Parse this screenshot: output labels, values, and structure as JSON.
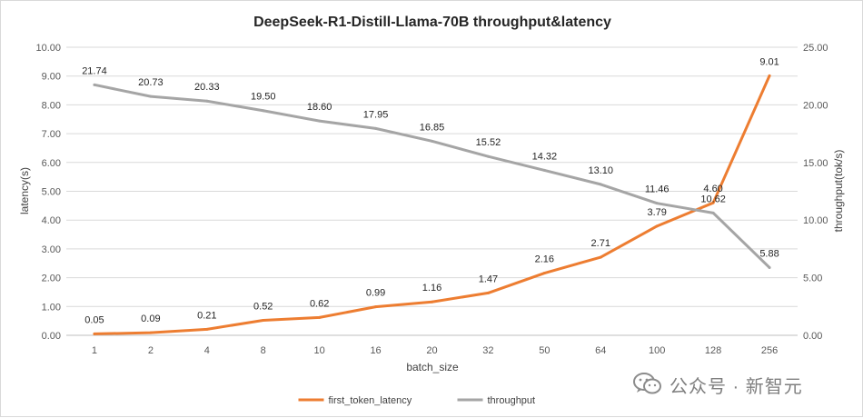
{
  "chart_data": {
    "type": "line",
    "title": "DeepSeek-R1-Distill-Llama-70B throughput&latency",
    "xlabel": "batch_size",
    "ylabel": "latency(s)",
    "y2label": "throughput(tok/s)",
    "categories": [
      "1",
      "2",
      "4",
      "8",
      "10",
      "16",
      "20",
      "32",
      "50",
      "64",
      "100",
      "128",
      "256"
    ],
    "ylim": [
      0,
      10
    ],
    "y2lim": [
      0,
      25
    ],
    "yticks": [
      "0.00",
      "1.00",
      "2.00",
      "3.00",
      "4.00",
      "5.00",
      "6.00",
      "7.00",
      "8.00",
      "9.00",
      "10.00"
    ],
    "y2ticks": [
      "0.00",
      "5.00",
      "10.00",
      "15.00",
      "20.00",
      "25.00"
    ],
    "grid": true,
    "legend_position": "bottom",
    "series": [
      {
        "name": "first_token_latency",
        "axis": "left",
        "color": "#ed7d31",
        "values": [
          0.05,
          0.09,
          0.21,
          0.52,
          0.62,
          0.99,
          1.16,
          1.47,
          2.16,
          2.71,
          3.79,
          4.6,
          9.01
        ],
        "labels": [
          "0.05",
          "0.09",
          "0.21",
          "0.52",
          "0.62",
          "0.99",
          "1.16",
          "1.47",
          "2.16",
          "2.71",
          "3.79",
          "4.60",
          "9.01"
        ]
      },
      {
        "name": "throughput",
        "axis": "right",
        "color": "#a5a5a5",
        "values": [
          21.74,
          20.73,
          20.33,
          19.5,
          18.6,
          17.95,
          16.85,
          15.52,
          14.32,
          13.1,
          11.46,
          10.62,
          5.88
        ],
        "labels": [
          "21.74",
          "20.73",
          "20.33",
          "19.50",
          "18.60",
          "17.95",
          "16.85",
          "15.52",
          "14.32",
          "13.10",
          "11.46",
          "10.62",
          "5.88"
        ]
      }
    ]
  },
  "watermark": {
    "text": "公众号 · 新智元",
    "icon": "wechat-icon"
  }
}
